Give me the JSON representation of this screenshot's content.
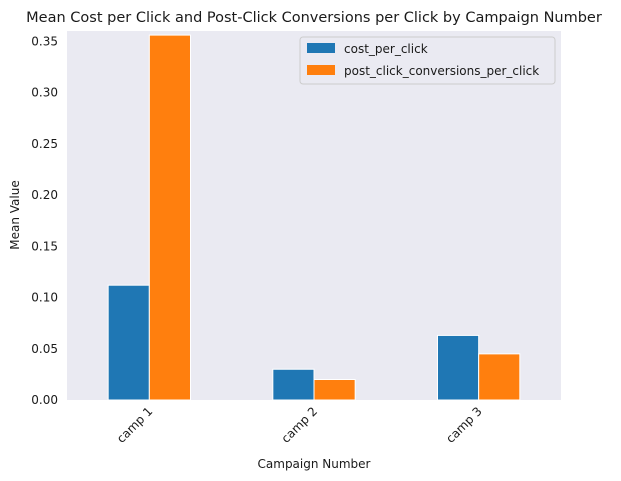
{
  "chart_data": {
    "type": "bar",
    "title": "Mean Cost per Click and Post-Click Conversions per Click by Campaign Number",
    "xlabel": "Campaign Number",
    "ylabel": "Mean Value",
    "categories": [
      "camp 1",
      "camp 2",
      "camp 3"
    ],
    "series": [
      {
        "name": "cost_per_click",
        "color": "#1f77b4",
        "values": [
          0.112,
          0.03,
          0.063
        ]
      },
      {
        "name": "post_click_conversions_per_click",
        "color": "#ff7f0e",
        "values": [
          0.356,
          0.02,
          0.045
        ]
      }
    ],
    "ylim": [
      0,
      0.36
    ],
    "yticks": [
      "0.00",
      "0.05",
      "0.10",
      "0.15",
      "0.20",
      "0.25",
      "0.30",
      "0.35"
    ],
    "grid": false,
    "legend": "top-right",
    "background": "#eaeaf2"
  }
}
